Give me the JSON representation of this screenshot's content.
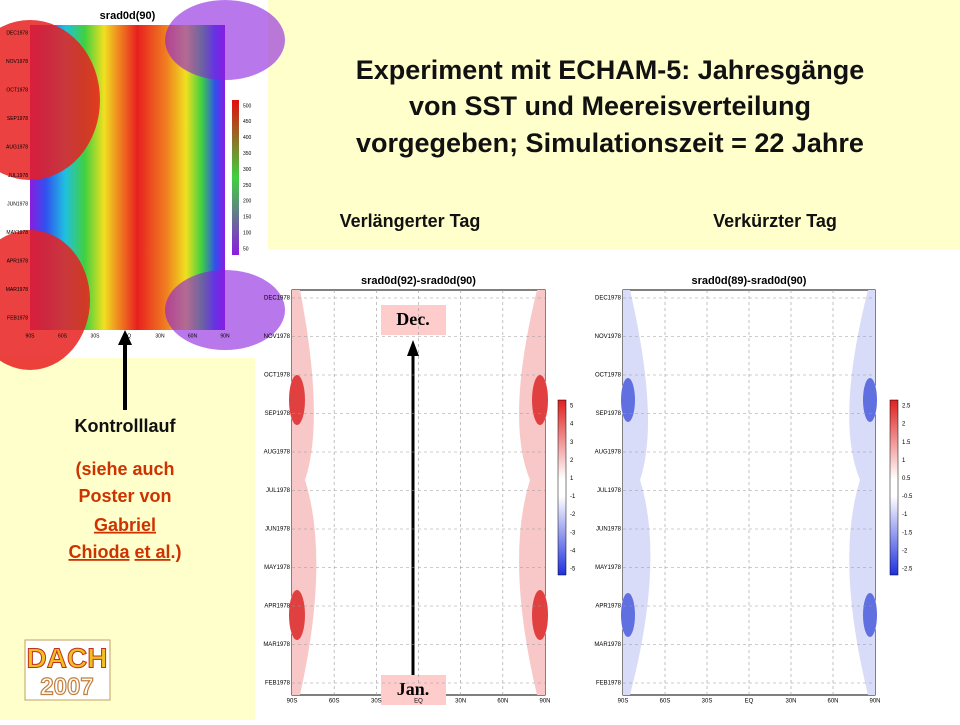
{
  "header": {
    "title_lines": [
      "Experiment mit ECHAM-5: Jahresgänge",
      "von SST und Meereisverteilung",
      "vorgegeben; Simulationszeit = 22 Jahre"
    ],
    "left_label": "Verlängerter Tag",
    "right_label": "Verkürzter Tag"
  },
  "control": {
    "label": "Kontrolllauf",
    "note_start": "(siehe auch",
    "note_mid": "Poster von",
    "link_first": "Gabriel",
    "link_last": "Chioda",
    "link_etal": "et al",
    "note_end": ".)"
  },
  "arrow": {
    "top": "Dec.",
    "bottom": "Jan."
  },
  "logo": {
    "top": "DACH",
    "bottom": "2007"
  },
  "plots": [
    {
      "title": "srad0d(90)",
      "y_labels": [
        "DEC1978",
        "NOV1978",
        "OCT1978",
        "SEP1978",
        "AUG1978",
        "JUL1978",
        "JUN1978",
        "MAY1978",
        "APR1978",
        "MAR1978",
        "FEB1978"
      ],
      "x_labels": [
        "90S",
        "60S",
        "30S",
        "EQ",
        "30N",
        "60N",
        "90N"
      ],
      "colorbar": [
        "500",
        "450",
        "400",
        "350",
        "300",
        "250",
        "200",
        "150",
        "100",
        "50"
      ]
    },
    {
      "title": "srad0d(92)-srad0d(90)",
      "y_labels": [
        "DEC1978",
        "NOV1978",
        "OCT1978",
        "SEP1978",
        "AUG1978",
        "JUL1978",
        "JUN1978",
        "MAY1978",
        "APR1978",
        "MAR1978",
        "FEB1978"
      ],
      "x_labels": [
        "90S",
        "60S",
        "30S",
        "EQ",
        "30N",
        "60N",
        "90N"
      ],
      "colorbar": [
        "5",
        "4",
        "3",
        "2",
        "1",
        "-1",
        "-2",
        "-3",
        "-4",
        "-5"
      ]
    },
    {
      "title": "srad0d(89)-srad0d(90)",
      "y_labels": [
        "DEC1978",
        "NOV1978",
        "OCT1978",
        "SEP1978",
        "AUG1978",
        "JUL1978",
        "JUN1978",
        "MAY1978",
        "APR1978",
        "MAR1978",
        "FEB1978"
      ],
      "x_labels": [
        "90S",
        "60S",
        "30S",
        "EQ",
        "30N",
        "60N",
        "90N"
      ],
      "colorbar": [
        "2.5",
        "2",
        "1.5",
        "1",
        "0.5",
        "-0.5",
        "-1",
        "-1.5",
        "-2",
        "-2.5"
      ]
    }
  ]
}
